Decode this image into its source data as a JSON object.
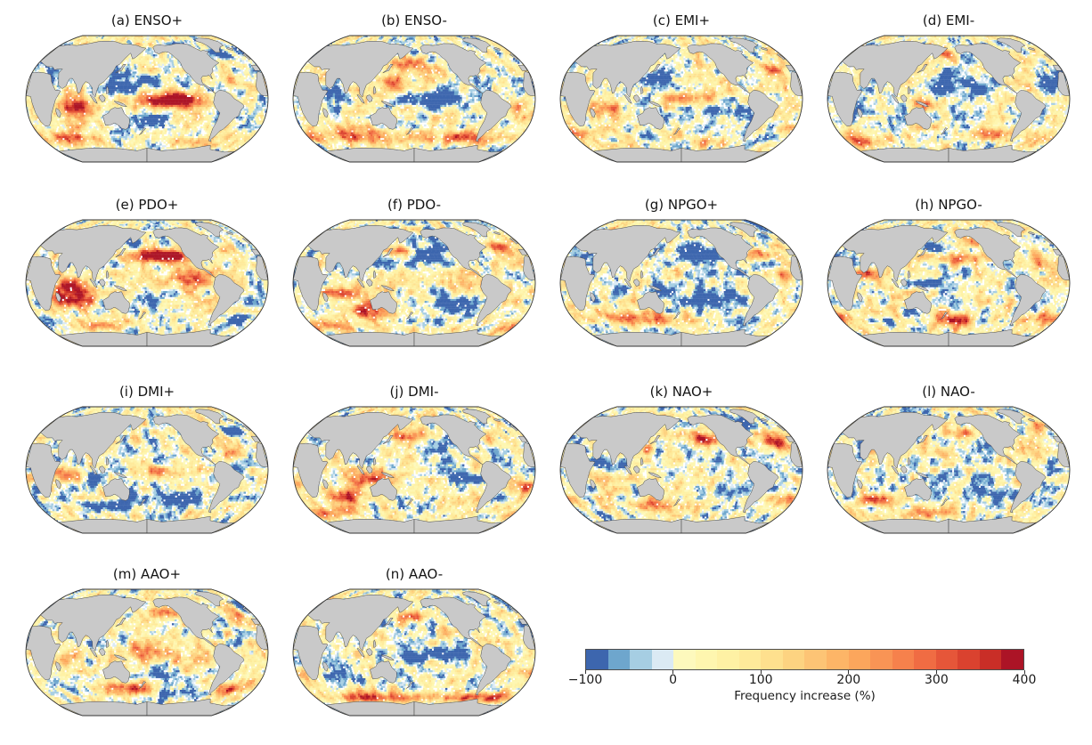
{
  "panels": [
    {
      "id": "a",
      "label": "(a) ENSO+"
    },
    {
      "id": "b",
      "label": "(b) ENSO-"
    },
    {
      "id": "c",
      "label": "(c) EMI+"
    },
    {
      "id": "d",
      "label": "(d) EMI-"
    },
    {
      "id": "e",
      "label": "(e) PDO+"
    },
    {
      "id": "f",
      "label": "(f) PDO-"
    },
    {
      "id": "g",
      "label": "(g) NPGO+"
    },
    {
      "id": "h",
      "label": "(h) NPGO-"
    },
    {
      "id": "i",
      "label": "(i) DMI+"
    },
    {
      "id": "j",
      "label": "(j) DMI-"
    },
    {
      "id": "k",
      "label": "(k) NAO+"
    },
    {
      "id": "l",
      "label": "(l) NAO-"
    },
    {
      "id": "m",
      "label": "(m) AAO+"
    },
    {
      "id": "n",
      "label": "(n) AAO-"
    }
  ],
  "colorbar": {
    "label": "Frequency increase (%)",
    "ticks": [
      "−100",
      "0",
      "100",
      "200",
      "300",
      "400"
    ],
    "tick_values": [
      -100,
      0,
      100,
      200,
      300,
      400
    ],
    "min": -100,
    "max": 400,
    "bin_width": 25,
    "n_bins": 20,
    "colors": [
      "#3d66ae",
      "#6ea6cd",
      "#a6cee3",
      "#dbeaf4",
      "#fdf9bd",
      "#fef6af",
      "#fef1a4",
      "#feea9a",
      "#fee08e",
      "#fdd381",
      "#fdc475",
      "#fdb567",
      "#fca65c",
      "#f99455",
      "#f6814c",
      "#f06c43",
      "#e65639",
      "#da422f",
      "#c92e27",
      "#ac1426"
    ],
    "land_color": "#c9c9c9",
    "no_data_color": "#ffffff"
  },
  "chart_data": {
    "type": "heatmap",
    "subtype": "small-multiple global maps (4 x 4 grid, 14 panels)",
    "projection": "Robinson, Pacific-centered",
    "variable": "Frequency increase (%)",
    "value_range": [
      -100,
      400
    ],
    "colorbar": {
      "label": "Frequency increase (%)",
      "ticks": [
        -100,
        0,
        100,
        200,
        300,
        400
      ],
      "n_bins": 20,
      "bin_width": 25,
      "palette": "blue (decrease) through pale yellow to dark red (strong increase); gray = land, white = near zero / no data"
    },
    "panels": [
      {
        "id": "a",
        "title": "(a) ENSO+",
        "mode": "ENSO",
        "phase": "positive",
        "dominant_pattern": "Very strong increase (deep red, ~+400%) across equatorial central/eastern Pacific; decrease (blue) horseshoe in western and north/south Pacific; strong increase over Indian Ocean and parts of tropical Atlantic."
      },
      {
        "id": "b",
        "title": "(b) ENSO-",
        "mode": "ENSO",
        "phase": "negative",
        "dominant_pattern": "Decrease across equatorial central Pacific; increase over western Pacific and widespread strong increase across southern mid-latitudes."
      },
      {
        "id": "c",
        "title": "(c) EMI+",
        "mode": "EMI",
        "phase": "positive",
        "dominant_pattern": "Moderate increase (orange) over central equatorial Pacific; decrease northwest and southeast Pacific; scattered increase Indian Ocean and South Atlantic."
      },
      {
        "id": "d",
        "title": "(d) EMI-",
        "mode": "EMI",
        "phase": "negative",
        "dominant_pattern": "Broad decrease over central North Pacific; increase patches along western Pacific rim and southern oceans."
      },
      {
        "id": "e",
        "title": "(e) PDO+",
        "mode": "PDO",
        "phase": "positive",
        "dominant_pattern": "Very strong increase across central North Pacific (25-45N) and eastern tropical Pacific; massive increase over Indian Ocean; decrease northwest Pacific and southeast Atlantic."
      },
      {
        "id": "f",
        "title": "(f) PDO-",
        "mode": "PDO",
        "phase": "negative",
        "dominant_pattern": "Broad strong decrease over central/eastern North Pacific; increase arc northwest Pacific and around Australia / eastern Indian Ocean."
      },
      {
        "id": "g",
        "title": "(g) NPGO+",
        "mode": "NPGO",
        "phase": "positive",
        "dominant_pattern": "Broad decrease over northeast/central North Pacific extending to southeast Pacific; increase western North Atlantic and southern Indian Ocean."
      },
      {
        "id": "h",
        "title": "(h) NPGO-",
        "mode": "NPGO",
        "phase": "negative",
        "dominant_pattern": "Increase band across central North Pacific and Gulf of Alaska; decrease band northwest Pacific; strong increase southeast of New Zealand, Arabian Sea and South Atlantic."
      },
      {
        "id": "i",
        "title": "(i) DMI+",
        "mode": "DMI",
        "phase": "positive",
        "dominant_pattern": "Increase western Indian Ocean and equatorial Pacific band; decrease eastern Indian Ocean, south Pacific and North Atlantic."
      },
      {
        "id": "j",
        "title": "(j) DMI-",
        "mode": "DMI",
        "phase": "negative",
        "dominant_pattern": "Strong increase around Maritime Continent, southern Indian Ocean and northwest Pacific; decrease northeast Pacific."
      },
      {
        "id": "k",
        "title": "(k) NAO+",
        "mode": "NAO",
        "phase": "positive",
        "dominant_pattern": "Increase northeast Pacific and central North Atlantic; strong decrease near Labrador Sea; decrease northern Indian Ocean; increase southern mid-latitudes."
      },
      {
        "id": "l",
        "title": "(l) NAO-",
        "mode": "NAO",
        "phase": "negative",
        "dominant_pattern": "Increase northeast Atlantic and southwest Indian Ocean; decrease southeast Pacific and South Atlantic."
      },
      {
        "id": "m",
        "title": "(m) AAO+",
        "mode": "AAO",
        "phase": "positive",
        "dominant_pattern": "Widespread moderate increase over tropical Pacific; strong increase across southern mid-latitudes (40-55S) and Gulf of Alaska."
      },
      {
        "id": "n",
        "title": "(n) AAO-",
        "mode": "AAO",
        "phase": "negative",
        "dominant_pattern": "Strong increase along Southern Ocean (50-65S); decrease over equatorial central Pacific; mostly neutral elsewhere."
      }
    ]
  }
}
